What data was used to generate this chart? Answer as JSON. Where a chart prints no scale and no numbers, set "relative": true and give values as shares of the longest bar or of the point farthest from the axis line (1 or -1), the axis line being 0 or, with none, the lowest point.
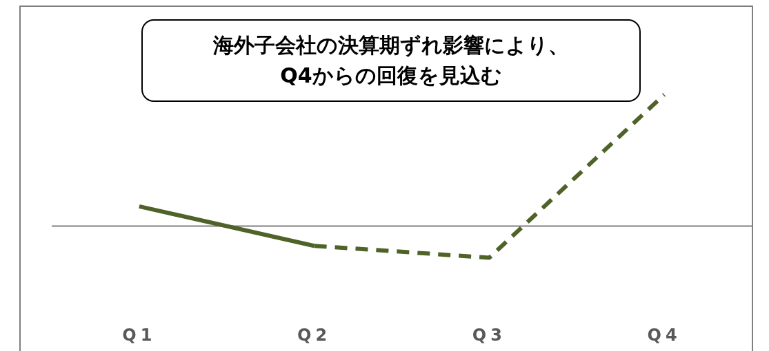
{
  "chart_data": {
    "type": "line",
    "relative": true,
    "categories": [
      "Q1",
      "Q2",
      "Q3",
      "Q4"
    ],
    "series": [
      {
        "color": "#4f6228",
        "line_style": "solid",
        "values": [
          0.15,
          -0.15,
          null,
          null
        ]
      },
      {
        "color": "#4f6228",
        "line_style": "dashed",
        "values": [
          null,
          -0.15,
          -0.24,
          1
        ]
      }
    ],
    "annotations": [
      "海外子会社の決算期ずれ影響により、\nQ4からの回復を見込む"
    ],
    "marker": "none"
  }
}
